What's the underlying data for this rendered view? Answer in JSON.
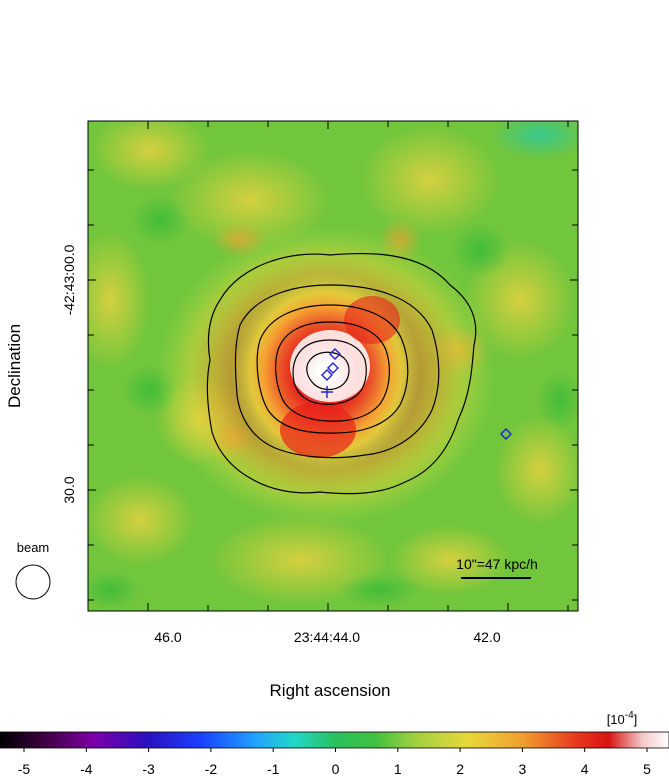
{
  "figure": {
    "xlabel": "Right ascension",
    "ylabel": "Declination",
    "x_ticks": [
      "46.0",
      "23:44:44.0",
      "42.0"
    ],
    "y_ticks": [
      "-42:43:00.0",
      "30.0"
    ],
    "beam_label": "beam",
    "scalebar_label": "10\"=47 kpc/h",
    "colorbar_unit": "[10",
    "colorbar_unit_exp": "-4",
    "colorbar_unit_close": "]",
    "colorbar_ticks": [
      "-5",
      "-4",
      "-3",
      "-2",
      "-1",
      "0",
      "1",
      "2",
      "3",
      "4",
      "5"
    ],
    "colors": {
      "background_map": "#6fc63a",
      "contour": "#000000",
      "markers": "#2222cc"
    }
  }
}
